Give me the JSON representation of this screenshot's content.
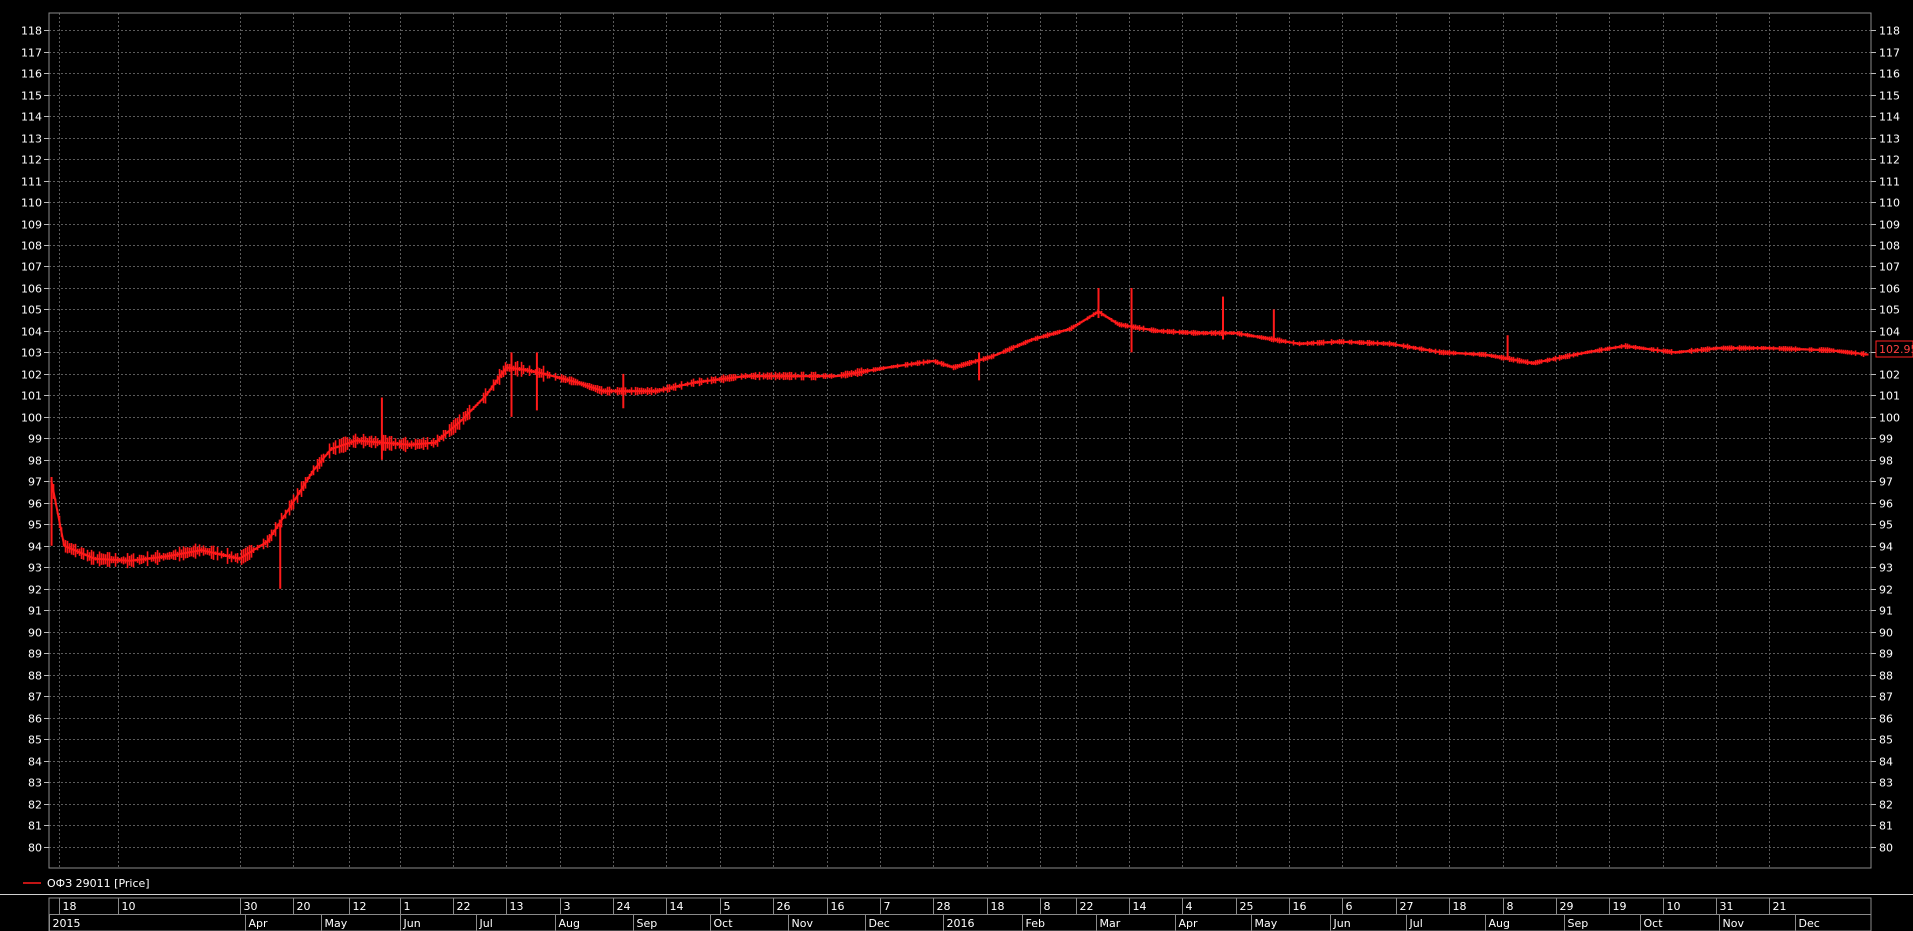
{
  "chart_data": {
    "type": "line",
    "title": "",
    "xlabel": "",
    "ylabel": "",
    "ylim": [
      79,
      118.8
    ],
    "grid": true,
    "legend_placement": "bottom-left",
    "series": [
      {
        "name": "ОФЗ 29011 [Price]",
        "color": "#ff1a1a",
        "last_value": "102.95",
        "x": [
          "2015-01-15",
          "2015-01-20",
          "2015-02-01",
          "2015-02-15",
          "2015-03-01",
          "2015-03-15",
          "2015-03-30",
          "2015-04-10",
          "2015-04-20",
          "2015-04-28",
          "2015-05-05",
          "2015-05-15",
          "2015-05-25",
          "2015-06-05",
          "2015-06-15",
          "2015-06-25",
          "2015-07-05",
          "2015-07-13",
          "2015-07-20",
          "2015-07-28",
          "2015-08-10",
          "2015-08-20",
          "2015-08-28",
          "2015-09-10",
          "2015-09-25",
          "2015-10-15",
          "2015-11-01",
          "2015-11-20",
          "2015-12-10",
          "2015-12-28",
          "2016-01-05",
          "2016-01-20",
          "2016-02-05",
          "2016-02-20",
          "2016-03-02",
          "2016-03-10",
          "2016-03-25",
          "2016-04-10",
          "2016-04-25",
          "2016-05-20",
          "2016-06-05",
          "2016-06-25",
          "2016-07-15",
          "2016-08-01",
          "2016-08-20",
          "2016-09-10",
          "2016-09-25",
          "2016-10-15",
          "2016-11-01",
          "2016-11-20",
          "2016-12-15",
          "2016-12-30"
        ],
        "y": [
          97.0,
          94.0,
          93.4,
          93.3,
          93.5,
          93.8,
          93.4,
          94.2,
          96.0,
          97.5,
          98.5,
          98.9,
          98.8,
          98.7,
          98.8,
          99.8,
          101.0,
          102.3,
          102.2,
          102.0,
          101.6,
          101.2,
          101.2,
          101.2,
          101.6,
          101.9,
          101.9,
          101.9,
          102.3,
          102.6,
          102.3,
          102.8,
          103.6,
          104.1,
          104.9,
          104.3,
          104.0,
          103.9,
          103.9,
          103.4,
          103.5,
          103.4,
          103.0,
          102.9,
          102.5,
          103.0,
          103.3,
          103.0,
          103.2,
          103.2,
          103.1,
          102.9
        ],
        "spikes": [
          {
            "x": "2015-01-15",
            "low": 94.0,
            "high": 97.2
          },
          {
            "x": "2015-04-15",
            "low": 92.0,
            "high": 95.0
          },
          {
            "x": "2015-05-25",
            "low": 98.0,
            "high": 100.9
          },
          {
            "x": "2015-07-15",
            "low": 100.0,
            "high": 103.0
          },
          {
            "x": "2015-07-25",
            "low": 100.3,
            "high": 103.0
          },
          {
            "x": "2015-08-28",
            "low": 100.4,
            "high": 102.0
          },
          {
            "x": "2016-01-15",
            "low": 101.7,
            "high": 103.0
          },
          {
            "x": "2016-03-02",
            "low": 104.6,
            "high": 106.0
          },
          {
            "x": "2016-03-15",
            "low": 103.0,
            "high": 106.0
          },
          {
            "x": "2016-04-20",
            "low": 103.6,
            "high": 105.6
          },
          {
            "x": "2016-05-10",
            "low": 103.6,
            "high": 105.0
          },
          {
            "x": "2016-08-10",
            "low": 102.7,
            "high": 103.8
          }
        ]
      }
    ],
    "y_ticks": [
      "80",
      "81",
      "82",
      "83",
      "84",
      "85",
      "86",
      "87",
      "88",
      "89",
      "90",
      "91",
      "92",
      "93",
      "94",
      "95",
      "96",
      "97",
      "98",
      "99",
      "100",
      "101",
      "102",
      "103",
      "104",
      "105",
      "106",
      "107",
      "108",
      "109",
      "110",
      "111",
      "112",
      "113",
      "114",
      "115",
      "116",
      "117",
      "118"
    ],
    "x_ticks_days": [
      {
        "x": "2015-01-18",
        "label": "18"
      },
      {
        "x": "2015-02-10",
        "label": "10"
      },
      {
        "x": "2015-03-30",
        "label": "30"
      },
      {
        "x": "2015-04-20",
        "label": "20"
      },
      {
        "x": "2015-05-12",
        "label": "12"
      },
      {
        "x": "2015-06-01",
        "label": "1"
      },
      {
        "x": "2015-06-22",
        "label": "22"
      },
      {
        "x": "2015-07-13",
        "label": "13"
      },
      {
        "x": "2015-08-03",
        "label": "3"
      },
      {
        "x": "2015-08-24",
        "label": "24"
      },
      {
        "x": "2015-09-14",
        "label": "14"
      },
      {
        "x": "2015-10-05",
        "label": "5"
      },
      {
        "x": "2015-10-26",
        "label": "26"
      },
      {
        "x": "2015-11-16",
        "label": "16"
      },
      {
        "x": "2015-12-07",
        "label": "7"
      },
      {
        "x": "2015-12-28",
        "label": "28"
      },
      {
        "x": "2016-01-18",
        "label": "18"
      },
      {
        "x": "2016-02-08",
        "label": "8"
      },
      {
        "x": "2016-02-22",
        "label": "22"
      },
      {
        "x": "2016-03-14",
        "label": "14"
      },
      {
        "x": "2016-04-04",
        "label": "4"
      },
      {
        "x": "2016-04-25",
        "label": "25"
      },
      {
        "x": "2016-05-16",
        "label": "16"
      },
      {
        "x": "2016-06-06",
        "label": "6"
      },
      {
        "x": "2016-06-27",
        "label": "27"
      },
      {
        "x": "2016-07-18",
        "label": "18"
      },
      {
        "x": "2016-08-08",
        "label": "8"
      },
      {
        "x": "2016-08-29",
        "label": "29"
      },
      {
        "x": "2016-09-19",
        "label": "19"
      },
      {
        "x": "2016-10-10",
        "label": "10"
      },
      {
        "x": "2016-10-31",
        "label": "31"
      },
      {
        "x": "2016-11-21",
        "label": "21"
      }
    ],
    "x_ticks_months": [
      {
        "x": "2015-01-01",
        "label": "2015"
      },
      {
        "x": "2015-04-01",
        "label": "Apr"
      },
      {
        "x": "2015-05-01",
        "label": "May"
      },
      {
        "x": "2015-06-01",
        "label": "Jun"
      },
      {
        "x": "2015-07-01",
        "label": "Jul"
      },
      {
        "x": "2015-08-01",
        "label": "Aug"
      },
      {
        "x": "2015-09-01",
        "label": "Sep"
      },
      {
        "x": "2015-10-01",
        "label": "Oct"
      },
      {
        "x": "2015-11-01",
        "label": "Nov"
      },
      {
        "x": "2015-12-01",
        "label": "Dec"
      },
      {
        "x": "2016-01-01",
        "label": "2016"
      },
      {
        "x": "2016-02-01",
        "label": "Feb"
      },
      {
        "x": "2016-03-01",
        "label": "Mar"
      },
      {
        "x": "2016-04-01",
        "label": "Apr"
      },
      {
        "x": "2016-05-01",
        "label": "May"
      },
      {
        "x": "2016-06-01",
        "label": "Jun"
      },
      {
        "x": "2016-07-01",
        "label": "Jul"
      },
      {
        "x": "2016-08-01",
        "label": "Aug"
      },
      {
        "x": "2016-09-01",
        "label": "Sep"
      },
      {
        "x": "2016-10-01",
        "label": "Oct"
      },
      {
        "x": "2016-11-01",
        "label": "Nov"
      },
      {
        "x": "2016-12-01",
        "label": "Dec"
      }
    ]
  }
}
